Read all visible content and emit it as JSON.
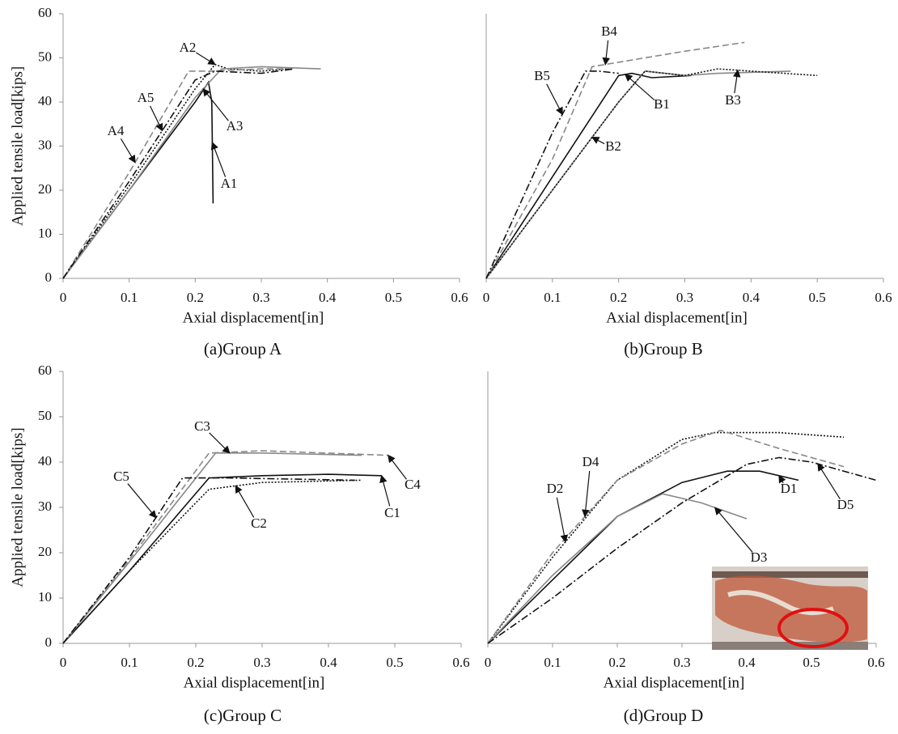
{
  "chart_data": [
    {
      "type": "line",
      "caption": "(a)Group A",
      "xlabel": "Axial displacement[in]",
      "ylabel": "Applied tensile load[kips]",
      "xlim": [
        0,
        0.6
      ],
      "ylim": [
        0,
        60
      ],
      "xticks": [
        0,
        0.1,
        0.2,
        0.3,
        0.4,
        0.5,
        0.6
      ],
      "yticks": [
        0,
        10,
        20,
        30,
        40,
        50,
        60
      ],
      "series": [
        {
          "name": "A1",
          "color": "#111111",
          "dash": "solid",
          "x": [
            0,
            0.1,
            0.2,
            0.22,
            0.225,
            0.227
          ],
          "values": [
            0,
            20,
            40,
            44.5,
            40,
            17
          ]
        },
        {
          "name": "A2",
          "color": "#111111",
          "dash": "dotted",
          "x": [
            0,
            0.1,
            0.2,
            0.23,
            0.25,
            0.3,
            0.34
          ],
          "values": [
            0,
            21,
            43,
            48.5,
            47.5,
            47,
            47.5
          ]
        },
        {
          "name": "A3",
          "color": "#888888",
          "dash": "solid",
          "x": [
            0,
            0.1,
            0.2,
            0.24,
            0.3,
            0.39
          ],
          "values": [
            0,
            20,
            41,
            47.5,
            48,
            47.5
          ]
        },
        {
          "name": "A4",
          "color": "#888888",
          "dash": "dashed",
          "x": [
            0,
            0.1,
            0.19,
            0.22,
            0.3,
            0.35
          ],
          "values": [
            0,
            24,
            47,
            47,
            47.5,
            47.5
          ]
        },
        {
          "name": "A5",
          "color": "#111111",
          "dash": "dashdot",
          "x": [
            0,
            0.1,
            0.2,
            0.23,
            0.3,
            0.35
          ],
          "values": [
            0,
            22,
            45,
            47,
            46.5,
            47.5
          ]
        }
      ]
    },
    {
      "type": "line",
      "caption": "(b)Group B",
      "xlabel": "Axial displacement[in]",
      "xlim": [
        0,
        0.6
      ],
      "ylim": [
        0,
        60
      ],
      "xticks": [
        0,
        0.1,
        0.2,
        0.3,
        0.4,
        0.5,
        0.6
      ],
      "series": [
        {
          "name": "B1",
          "color": "#111111",
          "dash": "solid",
          "x": [
            0,
            0.1,
            0.2,
            0.22,
            0.25,
            0.31
          ],
          "values": [
            0,
            23,
            46,
            46.5,
            45.5,
            46
          ]
        },
        {
          "name": "B2",
          "color": "#888888",
          "dash": "solid",
          "x": [
            0,
            0.1,
            0.2,
            0.24,
            0.3,
            0.35,
            0.46
          ],
          "values": [
            0,
            20,
            40,
            47,
            46,
            46.5,
            47
          ]
        },
        {
          "name": "B3",
          "color": "#111111",
          "dash": "dotted",
          "x": [
            0,
            0.1,
            0.2,
            0.24,
            0.3,
            0.35,
            0.4,
            0.5
          ],
          "values": [
            0,
            20,
            40,
            47,
            46,
            47.5,
            47,
            46
          ]
        },
        {
          "name": "B4",
          "color": "#888888",
          "dash": "dashed",
          "x": [
            0,
            0.1,
            0.16,
            0.2,
            0.3,
            0.39
          ],
          "values": [
            0,
            27,
            48,
            49,
            51.5,
            53.5
          ]
        },
        {
          "name": "B5",
          "color": "#111111",
          "dash": "dashdot",
          "x": [
            0,
            0.1,
            0.15,
            0.17,
            0.2
          ],
          "values": [
            0,
            33,
            47,
            47,
            46.5
          ]
        }
      ]
    },
    {
      "type": "line",
      "caption": "(c)Group C",
      "xlabel": "Axial displacement[in]",
      "ylabel": "Applied tensile load[kips]",
      "xlim": [
        0,
        0.6
      ],
      "ylim": [
        0,
        60
      ],
      "xticks": [
        0,
        0.1,
        0.2,
        0.3,
        0.4,
        0.5,
        0.6
      ],
      "yticks": [
        0,
        10,
        20,
        30,
        40,
        50,
        60
      ],
      "series": [
        {
          "name": "C1",
          "color": "#111111",
          "dash": "solid",
          "x": [
            0,
            0.1,
            0.22,
            0.3,
            0.4,
            0.48
          ],
          "values": [
            0,
            16,
            36.5,
            37,
            37.3,
            37
          ]
        },
        {
          "name": "C2",
          "color": "#111111",
          "dash": "dotted",
          "x": [
            0,
            0.1,
            0.22,
            0.3,
            0.45
          ],
          "values": [
            0,
            16,
            34,
            35.5,
            36
          ]
        },
        {
          "name": "C3",
          "color": "#888888",
          "dash": "solid",
          "x": [
            0,
            0.1,
            0.23,
            0.3,
            0.45
          ],
          "values": [
            0,
            18,
            42,
            42,
            41.5
          ]
        },
        {
          "name": "C4",
          "color": "#888888",
          "dash": "dashed",
          "x": [
            0,
            0.1,
            0.22,
            0.3,
            0.49
          ],
          "values": [
            0,
            18.5,
            42,
            42.5,
            41.5
          ]
        },
        {
          "name": "C5",
          "color": "#111111",
          "dash": "dashdot",
          "x": [
            0,
            0.1,
            0.18,
            0.25,
            0.44
          ],
          "values": [
            0,
            19,
            36.5,
            36.5,
            36
          ]
        }
      ]
    },
    {
      "type": "line",
      "caption": "(d)Group D",
      "xlabel": "Axial displacement[in]",
      "xlim": [
        0,
        0.6
      ],
      "ylim": [
        0,
        60
      ],
      "xticks": [
        0,
        0.1,
        0.2,
        0.3,
        0.4,
        0.5,
        0.6
      ],
      "series": [
        {
          "name": "D1",
          "color": "#111111",
          "dash": "solid",
          "x": [
            0,
            0.1,
            0.2,
            0.3,
            0.37,
            0.42,
            0.48
          ],
          "values": [
            0,
            14,
            28,
            35.5,
            38,
            38,
            36
          ]
        },
        {
          "name": "D2",
          "color": "#111111",
          "dash": "dotted",
          "x": [
            0,
            0.1,
            0.2,
            0.3,
            0.35,
            0.45,
            0.55
          ],
          "values": [
            0,
            19,
            36,
            45,
            46.5,
            46.5,
            45.5
          ]
        },
        {
          "name": "D3",
          "color": "#888888",
          "dash": "solid",
          "x": [
            0,
            0.1,
            0.2,
            0.27,
            0.33,
            0.4
          ],
          "values": [
            0,
            15,
            28,
            33,
            31,
            27.5
          ]
        },
        {
          "name": "D4",
          "color": "#888888",
          "dash": "dashed",
          "x": [
            0,
            0.1,
            0.2,
            0.3,
            0.36,
            0.45,
            0.55
          ],
          "values": [
            0,
            20,
            36,
            44,
            47,
            43,
            39
          ]
        },
        {
          "name": "D5",
          "color": "#111111",
          "dash": "dashdot",
          "x": [
            0,
            0.1,
            0.2,
            0.3,
            0.4,
            0.45,
            0.5,
            0.6
          ],
          "values": [
            0,
            10,
            21,
            31,
            39.5,
            41,
            40,
            36
          ]
        }
      ]
    }
  ]
}
